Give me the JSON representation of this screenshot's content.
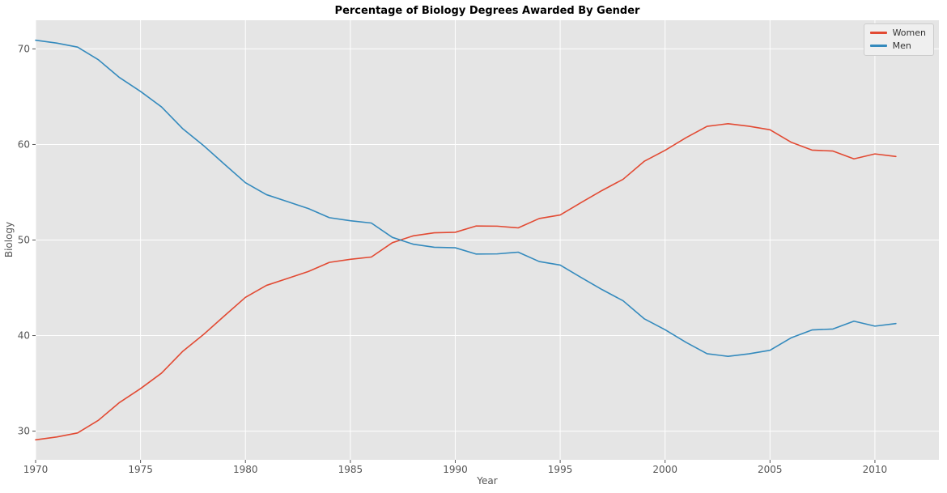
{
  "chart_data": {
    "type": "line",
    "title": "Percentage of Biology Degrees Awarded By Gender",
    "xlabel": "Year",
    "ylabel": "Biology",
    "x": [
      1970,
      1971,
      1972,
      1973,
      1974,
      1975,
      1976,
      1977,
      1978,
      1979,
      1980,
      1981,
      1982,
      1983,
      1984,
      1985,
      1986,
      1987,
      1988,
      1989,
      1990,
      1991,
      1992,
      1993,
      1994,
      1995,
      1996,
      1997,
      1998,
      1999,
      2000,
      2001,
      2002,
      2003,
      2004,
      2005,
      2006,
      2007,
      2008,
      2009,
      2010,
      2011
    ],
    "series": [
      {
        "name": "Women",
        "color": "#E24A33",
        "values": [
          29.09,
          29.39,
          29.81,
          31.15,
          33.0,
          34.45,
          36.07,
          38.33,
          40.11,
          42.07,
          44.0,
          45.25,
          45.98,
          46.71,
          47.66,
          47.98,
          48.22,
          49.72,
          50.44,
          50.76,
          50.81,
          51.47,
          51.45,
          51.27,
          52.25,
          52.62,
          53.92,
          55.19,
          56.36,
          58.23,
          59.39,
          60.71,
          61.9,
          62.17,
          61.91,
          61.54,
          60.24,
          59.41,
          59.31,
          58.49,
          59.01,
          58.74
        ]
      },
      {
        "name": "Men",
        "color": "#348ABD",
        "values": [
          70.91,
          70.61,
          70.19,
          68.85,
          67.0,
          65.55,
          63.93,
          61.67,
          59.89,
          57.93,
          56.0,
          54.75,
          54.02,
          53.29,
          52.34,
          52.02,
          51.78,
          50.28,
          49.56,
          49.24,
          49.19,
          48.53,
          48.55,
          48.73,
          47.75,
          47.38,
          46.08,
          44.81,
          43.64,
          41.77,
          40.61,
          39.29,
          38.1,
          37.83,
          38.09,
          38.46,
          39.76,
          40.59,
          40.69,
          41.51,
          40.99,
          41.26
        ]
      }
    ],
    "xticks": [
      1970,
      1975,
      1980,
      1985,
      1990,
      1995,
      2000,
      2005,
      2010
    ],
    "yticks": [
      30,
      40,
      50,
      60,
      70
    ],
    "xlim": [
      1970,
      2013.05
    ],
    "ylim": [
      27.0,
      73.0
    ],
    "grid": true,
    "legend_position": "upper right",
    "plot_bg": "#e5e5e5",
    "grid_color": "#ffffff",
    "tick_color": "#555555",
    "figure_bg": "#ffffff"
  }
}
